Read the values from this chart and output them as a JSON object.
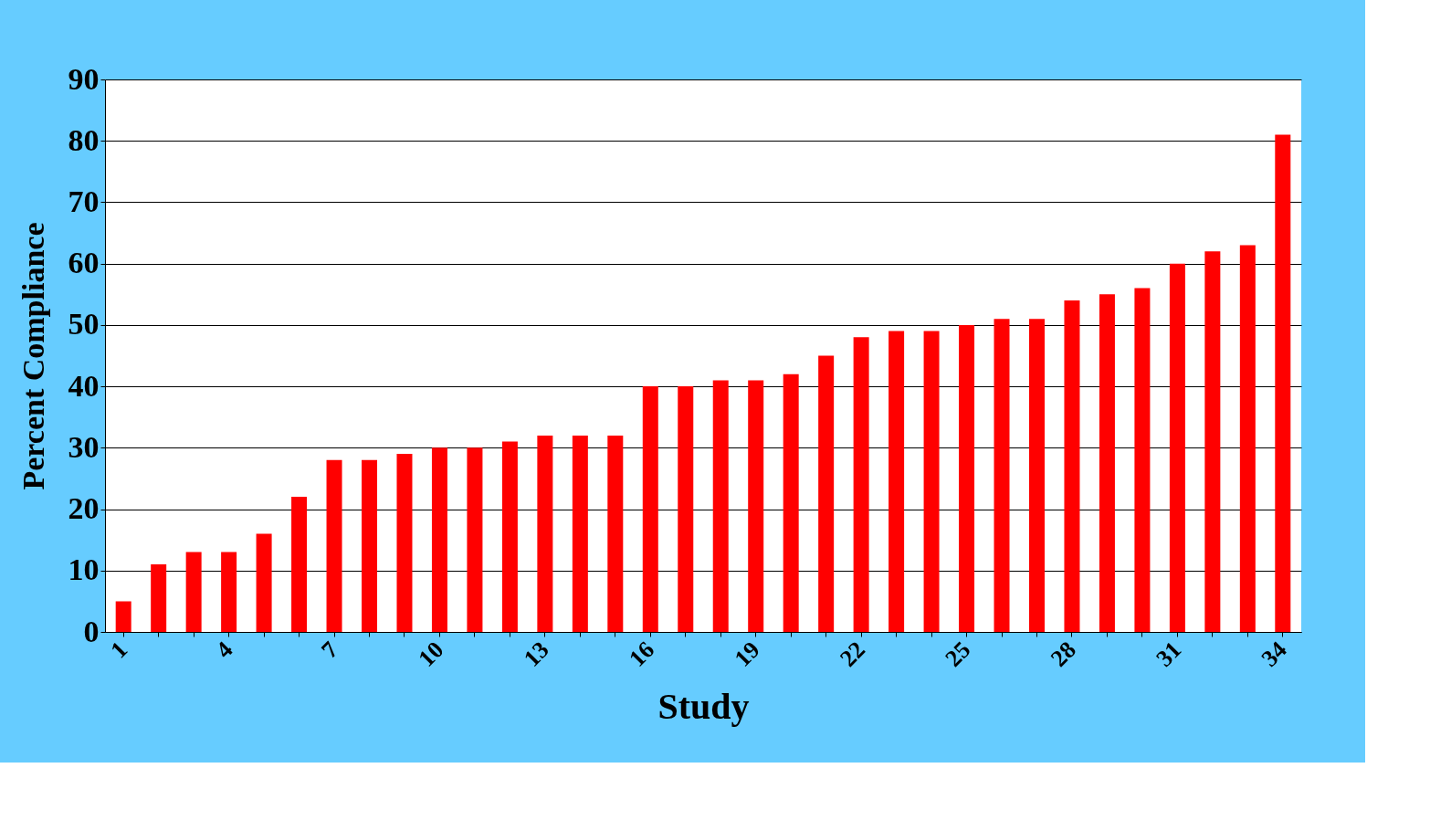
{
  "chart_data": {
    "type": "bar",
    "xlabel": "Study",
    "ylabel": "Percent Compliance",
    "categories": [
      "1",
      null,
      null,
      "4",
      null,
      null,
      "7",
      null,
      null,
      "10",
      null,
      null,
      "13",
      null,
      null,
      "16",
      null,
      null,
      "19",
      null,
      null,
      "22",
      null,
      null,
      "25",
      null,
      null,
      "28",
      null,
      null,
      "31",
      null,
      null,
      "34"
    ],
    "values": [
      5,
      11,
      13,
      13,
      16,
      22,
      28,
      28,
      29,
      30,
      30,
      31,
      32,
      32,
      32,
      40,
      40,
      41,
      41,
      42,
      45,
      48,
      49,
      49,
      50,
      51,
      51,
      54,
      55,
      56,
      60,
      62,
      63,
      81
    ],
    "color": "#ff0000",
    "ylim": [
      0,
      90
    ],
    "yticks": [
      0,
      10,
      20,
      30,
      40,
      50,
      60,
      70,
      80,
      90
    ],
    "grid": "y"
  }
}
